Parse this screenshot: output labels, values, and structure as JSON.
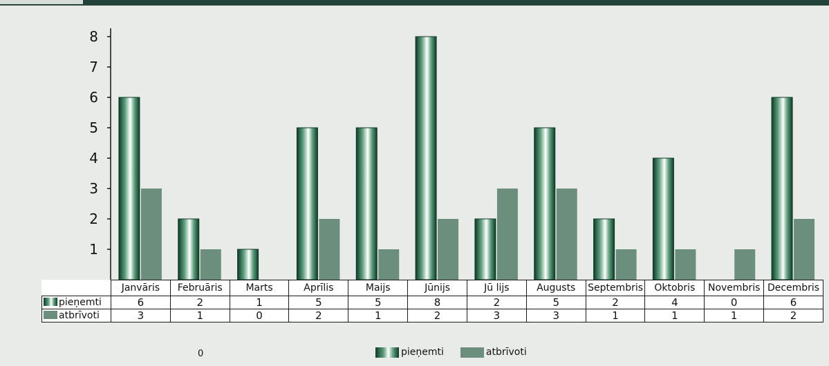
{
  "chart_data": {
    "type": "bar",
    "categories": [
      "Janvāris",
      "Februāris",
      "Marts",
      "Aprīlis",
      "Maijs",
      "Jūnijs",
      "Jū lijs",
      "Augusts",
      "Septembris",
      "Oktobris",
      "Novembris",
      "Decembris"
    ],
    "series": [
      {
        "name": "pieņemti",
        "values": [
          6,
          2,
          1,
          5,
          5,
          8,
          2,
          5,
          2,
          4,
          0,
          6
        ],
        "color": "#0d3b28"
      },
      {
        "name": "atbrīvoti",
        "values": [
          3,
          1,
          0,
          2,
          1,
          2,
          3,
          3,
          1,
          1,
          1,
          2
        ],
        "color": "#6b8f7c"
      }
    ],
    "yticks": [
      "1",
      "2",
      "3",
      "4",
      "5",
      "6",
      "7",
      "8"
    ],
    "ylim": [
      0,
      8
    ],
    "legend_position": "bottom",
    "grid": false,
    "data_table": true
  },
  "footer_note": "0",
  "colors": {
    "top_bar": "#23433a",
    "background": "#e9ebe9"
  }
}
